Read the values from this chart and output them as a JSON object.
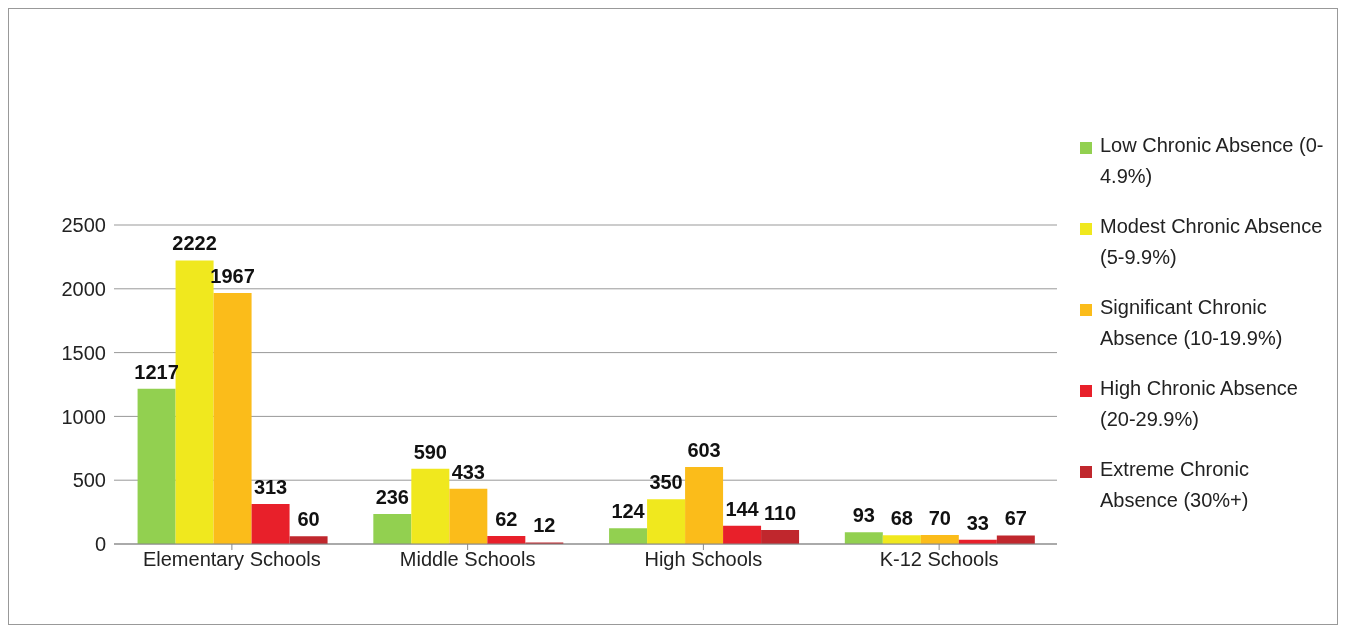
{
  "chart_data": {
    "type": "bar",
    "categories": [
      "Elementary Schools",
      "Middle Schools",
      "High Schools",
      "K-12 Schools"
    ],
    "series": [
      {
        "name": "Low Chronic Absence (0-4.9%)",
        "color": "#92d050",
        "values": [
          1217,
          236,
          124,
          93
        ]
      },
      {
        "name": "Modest Chronic Absence (5-9.9%)",
        "color": "#f0e81e",
        "values": [
          2222,
          590,
          350,
          68
        ]
      },
      {
        "name": "Significant Chronic Absence (10-19.9%)",
        "color": "#fbbc1a",
        "values": [
          1967,
          433,
          603,
          70
        ]
      },
      {
        "name": "High Chronic Absence (20-29.9%)",
        "color": "#e8202a",
        "values": [
          313,
          62,
          144,
          33
        ]
      },
      {
        "name": "Extreme Chronic Absence (30%+)",
        "color": "#c0272d",
        "values": [
          60,
          12,
          110,
          67
        ]
      }
    ],
    "ylim": [
      0,
      2500
    ],
    "yticks": [
      0,
      500,
      1000,
      1500,
      2000,
      2500
    ],
    "grid": "y",
    "legend": "right",
    "data_labels": true
  }
}
